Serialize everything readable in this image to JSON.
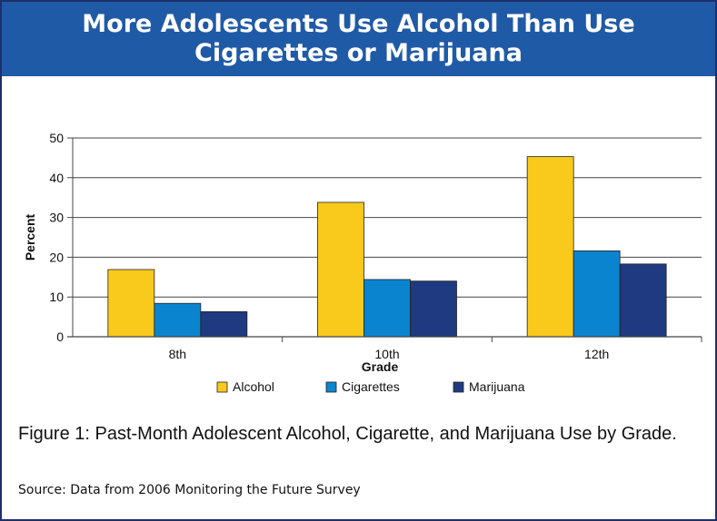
{
  "header": {
    "title_line1": "More Adolescents Use Alcohol Than Use",
    "title_line2": "Cigarettes or Marijuana"
  },
  "chart_data": {
    "type": "bar",
    "categories": [
      "8th",
      "10th",
      "12th"
    ],
    "series": [
      {
        "name": "Alcohol",
        "values": [
          16.9,
          33.8,
          45.3
        ],
        "color": "#f9c91c"
      },
      {
        "name": "Cigarettes",
        "values": [
          8.4,
          14.4,
          21.6
        ],
        "color": "#0b84cf"
      },
      {
        "name": "Marijuana",
        "values": [
          6.3,
          14.0,
          18.3
        ],
        "color": "#1f3a80"
      }
    ],
    "xlabel": "Grade",
    "ylabel": "Percent",
    "ylim": [
      0,
      50
    ],
    "yticks": [
      0,
      10,
      20,
      30,
      40,
      50
    ],
    "grid": true,
    "legend_position": "bottom"
  },
  "caption": "Figure 1: Past-Month Adolescent Alcohol, Cigarette, and Marijuana Use by Grade.",
  "source": "Source: Data from 2006 Monitoring the Future Survey"
}
